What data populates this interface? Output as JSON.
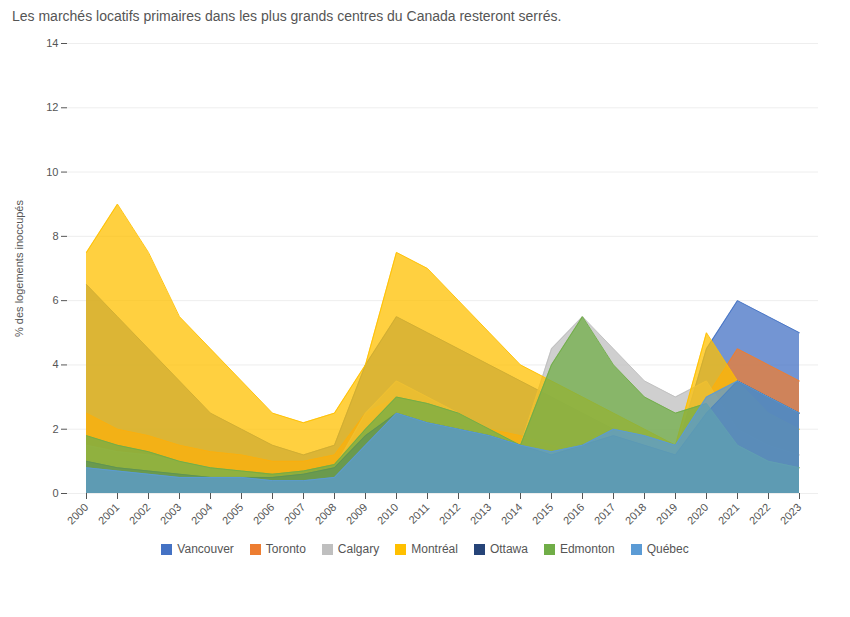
{
  "chart_data": {
    "type": "area",
    "title": "Les marchés locatifs primaires dans les plus grands centres du Canada resteront serrés.",
    "categories": [
      "2000",
      "2001",
      "2002",
      "2003",
      "2004",
      "2005",
      "2006",
      "2007",
      "2008",
      "2009",
      "2010",
      "2011",
      "2012",
      "2013",
      "2014",
      "2015",
      "2016",
      "2017",
      "2018",
      "2019",
      "2020",
      "2021",
      "2022",
      "2023"
    ],
    "series": [
      {
        "name": "Vancouver",
        "color": "#4472C4",
        "values": [
          6.5,
          5.5,
          4.5,
          3.5,
          2.5,
          2.0,
          1.5,
          1.2,
          1.5,
          4.0,
          5.5,
          5.0,
          4.5,
          4.0,
          3.5,
          3.0,
          2.5,
          2.0,
          1.5,
          1.2,
          4.5,
          6.0,
          5.5,
          5.0
        ]
      },
      {
        "name": "Toronto",
        "color": "#ED7D31",
        "values": [
          2.5,
          2.0,
          1.8,
          1.5,
          1.3,
          1.2,
          1.0,
          1.0,
          1.2,
          2.5,
          3.0,
          2.8,
          2.5,
          2.0,
          1.8,
          1.5,
          1.2,
          1.0,
          0.8,
          0.5,
          3.0,
          4.5,
          4.0,
          3.5
        ]
      },
      {
        "name": "Calgary",
        "color": "#BFBFBF",
        "values": [
          1.5,
          1.3,
          1.2,
          1.0,
          0.8,
          0.7,
          0.5,
          0.6,
          0.8,
          2.5,
          3.5,
          3.0,
          2.5,
          2.0,
          1.5,
          4.5,
          5.5,
          4.5,
          3.5,
          3.0,
          3.5,
          2.0,
          1.5,
          1.2
        ]
      },
      {
        "name": "Montréal",
        "color": "#FFC000",
        "values": [
          7.5,
          9.0,
          7.5,
          5.5,
          4.5,
          3.5,
          2.5,
          2.2,
          2.5,
          4.0,
          7.5,
          7.0,
          6.0,
          5.0,
          4.0,
          3.5,
          3.0,
          2.5,
          2.0,
          1.5,
          5.0,
          3.5,
          2.5,
          2.0
        ]
      },
      {
        "name": "Ottawa",
        "color": "#264478",
        "values": [
          1.0,
          0.8,
          0.7,
          0.6,
          0.5,
          0.5,
          0.5,
          0.6,
          0.8,
          1.8,
          2.5,
          2.2,
          2.0,
          1.8,
          1.5,
          1.2,
          1.5,
          1.8,
          1.5,
          1.2,
          2.5,
          3.5,
          3.0,
          2.5
        ]
      },
      {
        "name": "Edmonton",
        "color": "#70AD47",
        "values": [
          1.8,
          1.5,
          1.3,
          1.0,
          0.8,
          0.7,
          0.6,
          0.7,
          0.9,
          2.0,
          3.0,
          2.8,
          2.5,
          2.0,
          1.5,
          4.0,
          5.5,
          4.0,
          3.0,
          2.5,
          2.8,
          1.5,
          1.0,
          0.8
        ]
      },
      {
        "name": "Québec",
        "color": "#5B9BD5",
        "values": [
          0.8,
          0.7,
          0.6,
          0.5,
          0.5,
          0.5,
          0.4,
          0.4,
          0.5,
          1.5,
          2.5,
          2.2,
          2.0,
          1.8,
          1.5,
          1.3,
          1.5,
          2.0,
          1.8,
          1.5,
          3.0,
          3.5,
          3.0,
          2.5
        ]
      }
    ],
    "ylabel": "% des logements inoccupés",
    "ylim": [
      0,
      14
    ],
    "yticks": [
      0,
      2,
      4,
      6,
      8,
      10,
      12,
      14
    ],
    "grid": true,
    "legend": "bottom"
  }
}
